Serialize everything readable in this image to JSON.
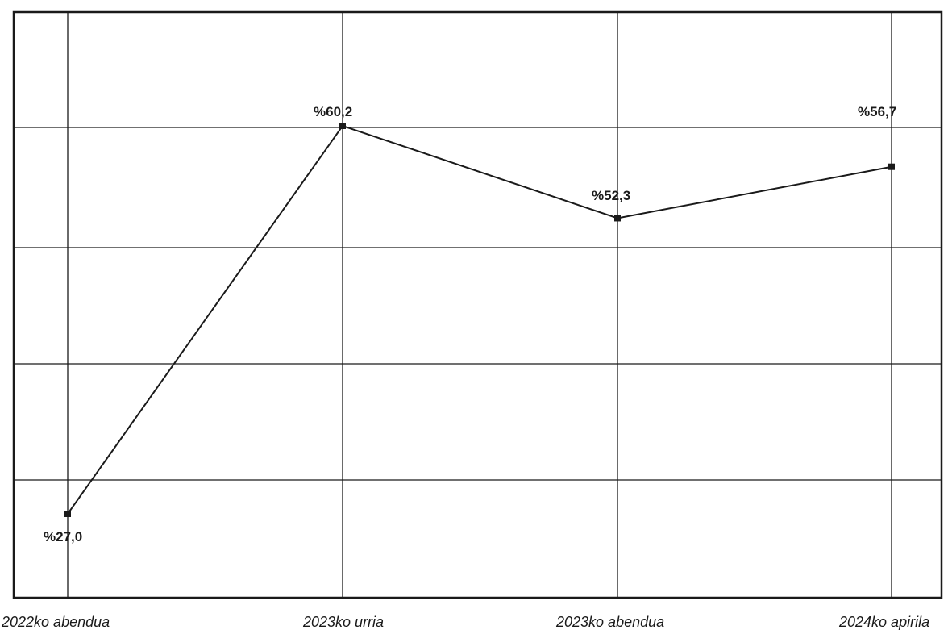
{
  "chart_data": {
    "type": "line",
    "categories": [
      "2022ko abendua",
      "2023ko urria",
      "2023ko abendua",
      "2024ko apirila"
    ],
    "series": [
      {
        "values": [
          27.0,
          60.2,
          52.3,
          56.7
        ]
      }
    ],
    "data_labels": [
      "%27,0",
      "%60,2",
      "%52,3",
      "%56,7"
    ],
    "ylim": [
      20,
      70
    ],
    "grid": true,
    "colors": {
      "line": "#1a1a1a",
      "grid": "#1a1a1a",
      "background": "#ffffff"
    }
  }
}
